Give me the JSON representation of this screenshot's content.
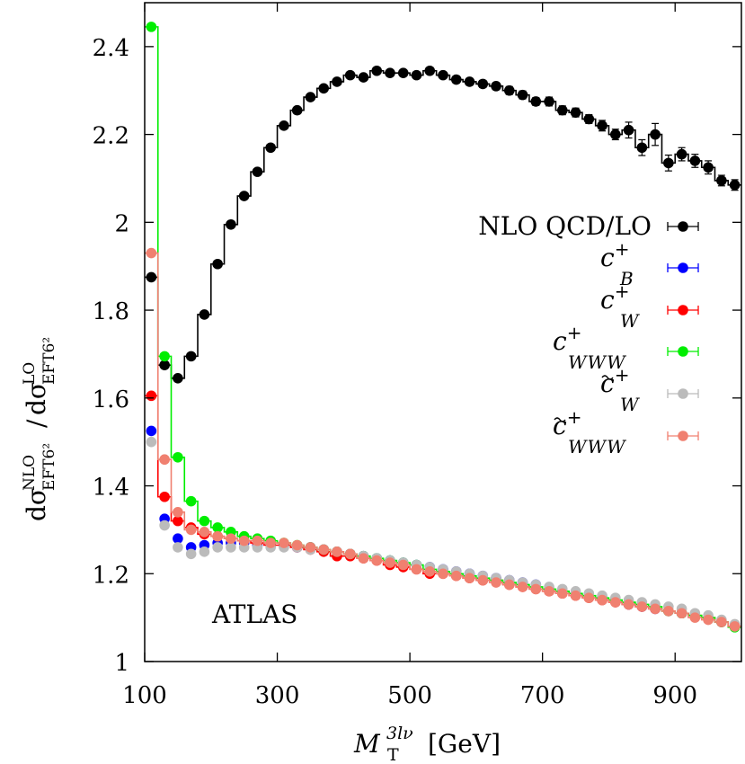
{
  "chart_data": {
    "type": "scatter",
    "title": "",
    "annotation": "ATLAS",
    "xlabel": {
      "main": "M",
      "sub": "T",
      "sup": "3lν",
      "unit": "[GeV]"
    },
    "ylabel": {
      "num": "dσ",
      "num_sup": "NLO",
      "num_sub": "EFT6²",
      "den": "dσ",
      "den_sup": "LO",
      "den_sub": "EFT6²"
    },
    "xlim": [
      100,
      1000
    ],
    "ylim": [
      1,
      2.5
    ],
    "x_ticks": [
      100,
      300,
      500,
      700,
      900
    ],
    "y_ticks": [
      1,
      1.2,
      1.4,
      1.6,
      1.8,
      2,
      2.2,
      2.4
    ],
    "x_tick_labels": [
      "100",
      "300",
      "500",
      "700",
      "900"
    ],
    "y_tick_labels": [
      "1",
      "1.2",
      "1.4",
      "1.6",
      "1.8",
      "2",
      "2.2",
      "2.4"
    ],
    "grid": false,
    "legend_position": "right",
    "bin_edges": [
      100,
      120,
      140,
      160,
      180,
      200,
      220,
      240,
      260,
      280,
      300,
      320,
      340,
      360,
      380,
      400,
      420,
      440,
      460,
      480,
      500,
      520,
      540,
      560,
      580,
      600,
      620,
      640,
      660,
      680,
      700,
      720,
      740,
      760,
      780,
      800,
      820,
      840,
      860,
      880,
      900,
      920,
      940,
      960,
      980,
      1000
    ],
    "x": [
      110,
      130,
      150,
      170,
      190,
      210,
      230,
      250,
      270,
      290,
      310,
      330,
      350,
      370,
      390,
      410,
      430,
      450,
      470,
      490,
      510,
      530,
      550,
      570,
      590,
      610,
      630,
      650,
      670,
      690,
      710,
      730,
      750,
      770,
      790,
      810,
      830,
      850,
      870,
      890,
      910,
      930,
      950,
      970,
      990
    ],
    "series": [
      {
        "label": {
          "text": "NLO QCD/LO",
          "sub": "",
          "sup": ""
        },
        "tilde": false,
        "color": "#000000",
        "with_line": true,
        "values": [
          1.875,
          1.675,
          1.645,
          1.695,
          1.79,
          1.905,
          1.995,
          2.06,
          2.115,
          2.17,
          2.22,
          2.255,
          2.285,
          2.305,
          2.32,
          2.335,
          2.33,
          2.345,
          2.34,
          2.34,
          2.335,
          2.345,
          2.335,
          2.325,
          2.32,
          2.315,
          2.31,
          2.3,
          2.29,
          2.275,
          2.275,
          2.255,
          2.25,
          2.235,
          2.22,
          2.2,
          2.21,
          2.17,
          2.2,
          2.135,
          2.155,
          2.14,
          2.125,
          2.095,
          2.085
        ],
        "errors": [
          0.004,
          0.004,
          0.004,
          0.004,
          0.004,
          0.004,
          0.004,
          0.004,
          0.004,
          0.004,
          0.005,
          0.005,
          0.005,
          0.005,
          0.005,
          0.006,
          0.006,
          0.006,
          0.006,
          0.006,
          0.007,
          0.007,
          0.007,
          0.008,
          0.008,
          0.008,
          0.008,
          0.009,
          0.009,
          0.009,
          0.01,
          0.01,
          0.01,
          0.01,
          0.012,
          0.012,
          0.018,
          0.018,
          0.025,
          0.018,
          0.015,
          0.015,
          0.015,
          0.012,
          0.012
        ]
      },
      {
        "label": {
          "text": "c",
          "sub": "B",
          "sup": "+"
        },
        "tilde": false,
        "color": "#0000ff",
        "with_line": false,
        "values": [
          1.525,
          1.325,
          1.28,
          1.26,
          1.265,
          1.27,
          1.27,
          1.27,
          1.265,
          1.265,
          1.265,
          1.26,
          1.26,
          1.255,
          1.25,
          1.245,
          1.24,
          1.235,
          1.23,
          1.225,
          1.22,
          1.215,
          1.21,
          1.205,
          1.2,
          1.195,
          1.19,
          1.185,
          1.18,
          1.175,
          1.165,
          1.16,
          1.155,
          1.15,
          1.145,
          1.14,
          1.13,
          1.125,
          1.12,
          1.115,
          1.11,
          1.105,
          1.1,
          1.09,
          1.08
        ],
        "errors": []
      },
      {
        "label": {
          "text": "c",
          "sub": "W",
          "sup": "+"
        },
        "tilde": false,
        "color": "#ff0000",
        "with_line": true,
        "values": [
          1.605,
          1.375,
          1.32,
          1.305,
          1.29,
          1.285,
          1.28,
          1.275,
          1.27,
          1.265,
          1.265,
          1.26,
          1.255,
          1.25,
          1.24,
          1.24,
          1.235,
          1.23,
          1.22,
          1.215,
          1.21,
          1.2,
          1.2,
          1.195,
          1.19,
          1.185,
          1.185,
          1.175,
          1.17,
          1.165,
          1.16,
          1.155,
          1.15,
          1.145,
          1.14,
          1.135,
          1.13,
          1.125,
          1.12,
          1.115,
          1.11,
          1.105,
          1.1,
          1.09,
          1.08
        ],
        "errors": []
      },
      {
        "label": {
          "text": "c",
          "sub": "WWW",
          "sup": "+"
        },
        "tilde": false,
        "color": "#00ee00",
        "with_line": true,
        "values": [
          2.445,
          1.695,
          1.465,
          1.365,
          1.32,
          1.305,
          1.295,
          1.285,
          1.28,
          1.275,
          1.27,
          1.265,
          1.26,
          1.255,
          1.25,
          1.245,
          1.24,
          1.235,
          1.23,
          1.225,
          1.22,
          1.21,
          1.205,
          1.2,
          1.195,
          1.19,
          1.185,
          1.18,
          1.175,
          1.17,
          1.165,
          1.16,
          1.155,
          1.15,
          1.145,
          1.14,
          1.135,
          1.13,
          1.125,
          1.115,
          1.11,
          1.105,
          1.1,
          1.09,
          1.078
        ],
        "errors": []
      },
      {
        "label": {
          "text": "c",
          "sub": "W",
          "sup": "+"
        },
        "tilde": true,
        "color": "#bbbbbb",
        "with_line": false,
        "values": [
          1.5,
          1.31,
          1.26,
          1.245,
          1.25,
          1.26,
          1.26,
          1.26,
          1.26,
          1.26,
          1.26,
          1.26,
          1.255,
          1.255,
          1.25,
          1.245,
          1.24,
          1.235,
          1.23,
          1.225,
          1.22,
          1.215,
          1.21,
          1.205,
          1.2,
          1.195,
          1.19,
          1.185,
          1.18,
          1.175,
          1.17,
          1.165,
          1.16,
          1.155,
          1.15,
          1.145,
          1.14,
          1.135,
          1.13,
          1.125,
          1.12,
          1.11,
          1.105,
          1.095,
          1.085
        ],
        "errors": []
      },
      {
        "label": {
          "text": "c",
          "sub": "WWW",
          "sup": "+"
        },
        "tilde": true,
        "color": "#f08070",
        "with_line": true,
        "values": [
          1.93,
          1.46,
          1.34,
          1.3,
          1.295,
          1.285,
          1.28,
          1.275,
          1.275,
          1.27,
          1.27,
          1.265,
          1.26,
          1.255,
          1.25,
          1.245,
          1.235,
          1.23,
          1.225,
          1.22,
          1.21,
          1.205,
          1.2,
          1.195,
          1.19,
          1.185,
          1.18,
          1.175,
          1.17,
          1.165,
          1.16,
          1.155,
          1.15,
          1.145,
          1.14,
          1.135,
          1.13,
          1.125,
          1.12,
          1.115,
          1.11,
          1.1,
          1.095,
          1.09,
          1.08
        ],
        "errors": []
      }
    ]
  }
}
